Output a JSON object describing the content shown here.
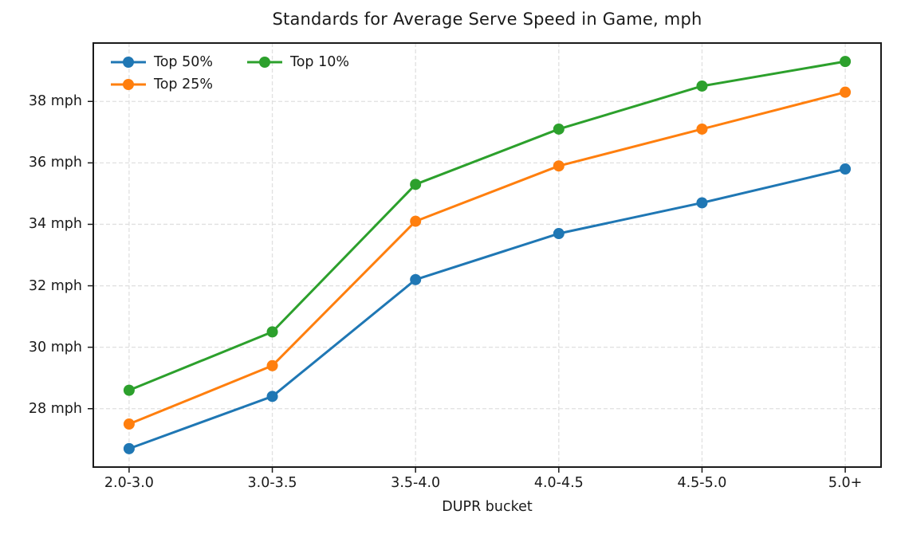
{
  "chart_data": {
    "type": "line",
    "title": "Standards for Average Serve Speed in Game, mph",
    "xlabel": "DUPR bucket",
    "ylabel": "",
    "categories": [
      "2.0-3.0",
      "3.0-3.5",
      "3.5-4.0",
      "4.0-4.5",
      "4.5-5.0",
      "5.0+"
    ],
    "series": [
      {
        "name": "Top 50%",
        "color": "#1f77b4",
        "values": [
          26.7,
          28.4,
          32.2,
          33.7,
          34.7,
          35.8
        ]
      },
      {
        "name": "Top 25%",
        "color": "#ff7f0e",
        "values": [
          27.5,
          29.4,
          34.1,
          35.9,
          37.1,
          38.3
        ]
      },
      {
        "name": "Top 10%",
        "color": "#2ca02c",
        "values": [
          28.6,
          30.5,
          35.3,
          37.1,
          38.5,
          39.3
        ]
      }
    ],
    "yticks": [
      28,
      30,
      32,
      34,
      36,
      38
    ],
    "ytick_label_suffix": " mph",
    "ylim": [
      26.1,
      39.9
    ],
    "grid": true,
    "grid_linestyle": "dashed",
    "legend_position": "upper-left",
    "legend_columns": 2,
    "marker": "circle",
    "colors": {
      "grid": "#e0e0e0",
      "spine": "#1a1a1a",
      "text": "#1a1a1a",
      "background": "#ffffff"
    }
  }
}
